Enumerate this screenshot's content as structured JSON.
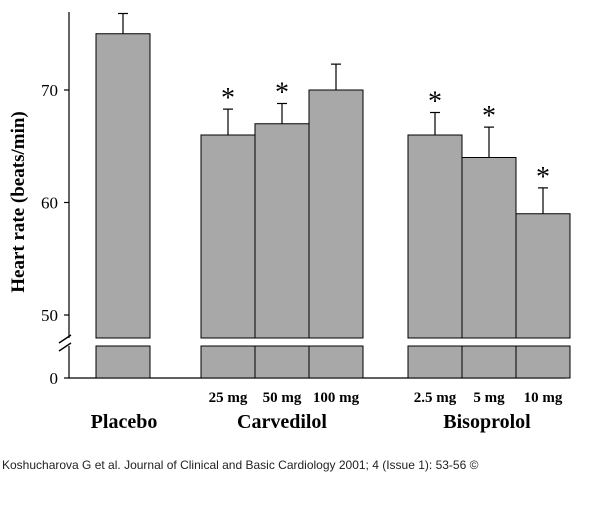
{
  "chart_data": {
    "type": "bar",
    "ylabel": "Heart rate (beats/min)",
    "yticks": [
      0,
      50,
      60,
      70
    ],
    "ylim": [
      45,
      77
    ],
    "axis_break": true,
    "groups": [
      {
        "label": "Placebo",
        "bars": [
          {
            "label": "",
            "value": 75,
            "error": 1.8,
            "significant": false
          }
        ]
      },
      {
        "label": "Carvedilol",
        "bars": [
          {
            "label": "25 mg",
            "value": 66,
            "error": 2.3,
            "significant": true
          },
          {
            "label": "50 mg",
            "value": 67,
            "error": 1.8,
            "significant": true
          },
          {
            "label": "100 mg",
            "value": 70,
            "error": 2.3,
            "significant": false
          }
        ]
      },
      {
        "label": "Bisoprolol",
        "bars": [
          {
            "label": "2.5 mg",
            "value": 66,
            "error": 2.0,
            "significant": true
          },
          {
            "label": "5 mg",
            "value": 64,
            "error": 2.7,
            "significant": true
          },
          {
            "label": "10 mg",
            "value": 59,
            "error": 2.3,
            "significant": true
          }
        ]
      }
    ],
    "significance_marker": "*",
    "colors": {
      "bar": "#a8a8a8",
      "outline": "#000000"
    }
  },
  "caption": "Koshucharova G et al. Journal of Clinical and Basic Cardiology 2001; 4 (Issue 1): 53-56 ©"
}
